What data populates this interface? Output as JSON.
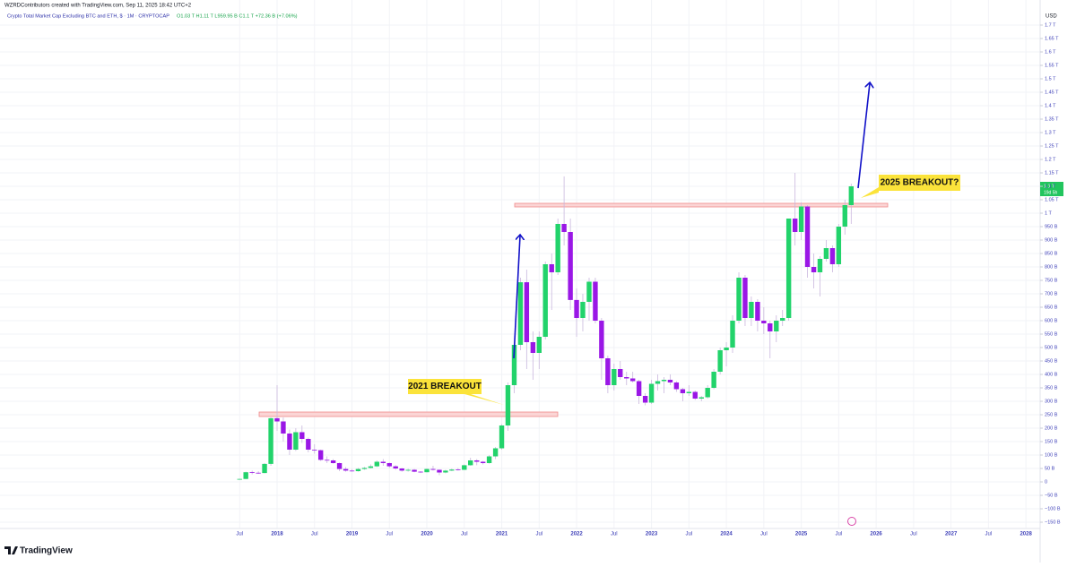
{
  "header": {
    "credit": "WZRDContributors created with TradingView.com, Sep 11, 2025 18:42 UTC+2",
    "title": "Crypto Total Market Cap Excluding BTC and ETH, $ · 1M · CRYPTOCAP",
    "ohlc": "O1.03 T  H1.11 T  L959.95 B  C1.1 T  +72.36 B (+7.06%)"
  },
  "footer": {
    "logo": "TradingView"
  },
  "chart_data": {
    "type": "candlestick",
    "currency": "USD",
    "up_color": "#22d36b",
    "down_color": "#9a17e6",
    "grid": true,
    "last_price_label": "1.1 T",
    "countdown": "19d 5h",
    "annotations": [
      "2021 BREAKOUT",
      "2025 BREAKOUT?"
    ],
    "xlim": [
      2014.3,
      2028.19
    ],
    "xticks": [
      {
        "value": 2017.5,
        "label": "Jul"
      },
      2018,
      {
        "value": 2018.5,
        "label": "Jul"
      },
      2019,
      {
        "value": 2019.5,
        "label": "Jul"
      },
      2020,
      {
        "value": 2020.5,
        "label": "Jul"
      },
      2021,
      {
        "value": 2021.5,
        "label": "Jul"
      },
      2022,
      {
        "value": 2022.5,
        "label": "Jul"
      },
      2023,
      {
        "value": 2023.5,
        "label": "Jul"
      },
      2024,
      {
        "value": 2024.5,
        "label": "Jul"
      },
      2025,
      {
        "value": 2025.5,
        "label": "Jul"
      },
      2026,
      {
        "value": 2026.5,
        "label": "Jul"
      },
      2027,
      {
        "value": 2027.5,
        "label": "Jul"
      },
      2028
    ],
    "ylim": [
      -173.33,
      1793.33
    ],
    "yticks": [
      {
        "value": -150,
        "label": "−150 B"
      },
      {
        "value": -100,
        "label": "−100 B"
      },
      {
        "value": -50,
        "label": "−50 B"
      },
      0,
      {
        "value": 50,
        "label": "50 B"
      },
      {
        "value": 100,
        "label": "100 B"
      },
      {
        "value": 150,
        "label": "150 B"
      },
      {
        "value": 200,
        "label": "200 B"
      },
      {
        "value": 250,
        "label": "250 B"
      },
      {
        "value": 300,
        "label": "300 B"
      },
      {
        "value": 350,
        "label": "350 B"
      },
      {
        "value": 400,
        "label": "400 B"
      },
      {
        "value": 450,
        "label": "450 B"
      },
      {
        "value": 500,
        "label": "500 B"
      },
      {
        "value": 550,
        "label": "550 B"
      },
      {
        "value": 600,
        "label": "600 B"
      },
      {
        "value": 650,
        "label": "650 B"
      },
      {
        "value": 700,
        "label": "700 B"
      },
      {
        "value": 750,
        "label": "750 B"
      },
      {
        "value": 800,
        "label": "800 B"
      },
      {
        "value": 850,
        "label": "850 B"
      },
      {
        "value": 900,
        "label": "900 B"
      },
      {
        "value": 950,
        "label": "950 B"
      },
      {
        "value": 1000,
        "label": "1 T"
      },
      {
        "value": 1050,
        "label": "1.05 T"
      },
      {
        "value": 1100,
        "label": "1.1 T"
      },
      {
        "value": 1150,
        "label": "1.15 T"
      },
      {
        "value": 1200,
        "label": "1.2 T"
      },
      {
        "value": 1250,
        "label": "1.25 T"
      },
      {
        "value": 1300,
        "label": "1.3 T"
      },
      {
        "value": 1350,
        "label": "1.35 T"
      },
      {
        "value": 1400,
        "label": "1.4 T"
      },
      {
        "value": 1450,
        "label": "1.45 T"
      },
      {
        "value": 1500,
        "label": "1.5 T"
      },
      {
        "value": 1550,
        "label": "1.55 T"
      },
      {
        "value": 1600,
        "label": "1.6 T"
      },
      {
        "value": 1650,
        "label": "1.65 T"
      },
      {
        "value": 1700,
        "label": "1.7 T"
      }
    ],
    "x": [
      2017.5,
      2017.583,
      2017.667,
      2017.75,
      2017.833,
      2017.917,
      2018,
      2018.083,
      2018.167,
      2018.25,
      2018.333,
      2018.417,
      2018.5,
      2018.583,
      2018.667,
      2018.75,
      2018.833,
      2018.917,
      2019,
      2019.083,
      2019.167,
      2019.25,
      2019.333,
      2019.417,
      2019.5,
      2019.583,
      2019.667,
      2019.75,
      2019.833,
      2019.917,
      2020,
      2020.083,
      2020.167,
      2020.25,
      2020.333,
      2020.417,
      2020.5,
      2020.583,
      2020.667,
      2020.75,
      2020.833,
      2020.917,
      2021,
      2021.083,
      2021.167,
      2021.25,
      2021.333,
      2021.417,
      2021.5,
      2021.583,
      2021.667,
      2021.75,
      2021.833,
      2021.917,
      2022,
      2022.083,
      2022.167,
      2022.25,
      2022.333,
      2022.417,
      2022.5,
      2022.583,
      2022.667,
      2022.75,
      2022.833,
      2022.917,
      2023,
      2023.083,
      2023.167,
      2023.25,
      2023.333,
      2023.417,
      2023.5,
      2023.583,
      2023.667,
      2023.75,
      2023.833,
      2023.917,
      2024,
      2024.083,
      2024.167,
      2024.25,
      2024.333,
      2024.417,
      2024.5,
      2024.583,
      2024.667,
      2024.75,
      2024.833,
      2024.917,
      2025,
      2025.083,
      2025.167,
      2025.25,
      2025.333,
      2025.417,
      2025.5,
      2025.583,
      2025.667
    ],
    "open": [
      10,
      11,
      36,
      34,
      33,
      67,
      237,
      225,
      180,
      120,
      185,
      160,
      120,
      118,
      82,
      80,
      70,
      48,
      42,
      40,
      48,
      52,
      58,
      75,
      70,
      58,
      50,
      42,
      45,
      38,
      36,
      48,
      45,
      35,
      42,
      46,
      45,
      62,
      80,
      75,
      70,
      95,
      125,
      210,
      360,
      510,
      743,
      520,
      480,
      540,
      810,
      780,
      960,
      930,
      677,
      610,
      670,
      745,
      600,
      460,
      360,
      420,
      390,
      385,
      375,
      320,
      295,
      365,
      375,
      380,
      370,
      345,
      330,
      335,
      310,
      315,
      350,
      410,
      490,
      500,
      600,
      760,
      610,
      670,
      600,
      590,
      560,
      600,
      610,
      980,
      930,
      1025,
      800,
      780,
      830,
      870,
      810,
      950,
      1030
    ],
    "high": [
      12,
      38,
      42,
      40,
      70,
      240,
      360,
      240,
      195,
      200,
      210,
      165,
      140,
      120,
      95,
      85,
      72,
      55,
      48,
      52,
      56,
      65,
      80,
      85,
      72,
      62,
      52,
      50,
      48,
      40,
      50,
      60,
      46,
      45,
      50,
      52,
      65,
      90,
      85,
      78,
      100,
      130,
      215,
      370,
      520,
      760,
      790,
      560,
      560,
      820,
      850,
      980,
      1137,
      980,
      720,
      700,
      760,
      760,
      610,
      470,
      440,
      450,
      410,
      410,
      380,
      330,
      380,
      400,
      390,
      400,
      375,
      350,
      360,
      340,
      320,
      360,
      420,
      500,
      520,
      620,
      780,
      770,
      690,
      680,
      650,
      600,
      620,
      640,
      980,
      1150,
      1040,
      1030,
      850,
      840,
      900,
      880,
      960,
      1050,
      1110
    ],
    "low": [
      8,
      10,
      28,
      30,
      32,
      60,
      190,
      150,
      100,
      115,
      145,
      110,
      105,
      78,
      70,
      68,
      40,
      38,
      38,
      38,
      45,
      50,
      55,
      60,
      52,
      45,
      38,
      38,
      36,
      33,
      35,
      42,
      25,
      32,
      40,
      42,
      44,
      60,
      62,
      65,
      68,
      85,
      120,
      190,
      330,
      490,
      420,
      380,
      420,
      530,
      640,
      770,
      880,
      640,
      540,
      560,
      600,
      590,
      380,
      330,
      340,
      380,
      360,
      370,
      290,
      285,
      290,
      340,
      330,
      360,
      335,
      300,
      320,
      305,
      300,
      310,
      345,
      400,
      430,
      480,
      590,
      580,
      580,
      560,
      550,
      460,
      520,
      580,
      600,
      880,
      900,
      760,
      720,
      690,
      820,
      780,
      800,
      920,
      959.95
    ],
    "close": [
      11,
      36,
      34,
      33,
      67,
      237,
      225,
      180,
      120,
      185,
      160,
      120,
      118,
      82,
      80,
      70,
      48,
      42,
      40,
      48,
      52,
      58,
      75,
      70,
      58,
      50,
      42,
      45,
      38,
      36,
      48,
      45,
      35,
      42,
      46,
      45,
      62,
      80,
      75,
      70,
      95,
      125,
      210,
      360,
      510,
      743,
      520,
      480,
      540,
      810,
      780,
      960,
      930,
      677,
      610,
      670,
      745,
      600,
      460,
      360,
      420,
      390,
      385,
      375,
      320,
      295,
      365,
      375,
      380,
      370,
      345,
      330,
      335,
      310,
      315,
      350,
      410,
      490,
      500,
      600,
      760,
      610,
      670,
      600,
      590,
      560,
      600,
      610,
      980,
      930,
      1025,
      800,
      780,
      830,
      870,
      810,
      950,
      1030,
      1100
    ]
  }
}
